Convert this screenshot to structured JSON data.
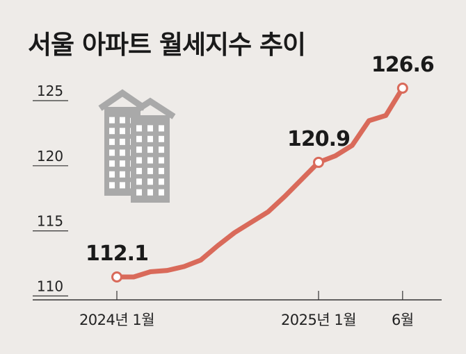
{
  "title": "서울 아파트 월세지수 추이",
  "chart_data": {
    "type": "line",
    "title": "서울 아파트 월세지수 추이",
    "xlabel": "",
    "ylabel": "",
    "ylim": [
      110,
      126.6
    ],
    "y_ticks": [
      "110",
      "115",
      "120",
      "125"
    ],
    "x_tick_labels": [
      "2024년 1월",
      "2025년 1월",
      "6월"
    ],
    "grid": false,
    "line_color": "#d96a5a",
    "series": [
      {
        "x": [
          "2024-01",
          "2024-02",
          "2024-03",
          "2024-04",
          "2024-05",
          "2024-06",
          "2024-07",
          "2024-08",
          "2024-09",
          "2024-10",
          "2024-11",
          "2024-12",
          "2025-01",
          "2025-02",
          "2025-03",
          "2025-04",
          "2025-05",
          "2025-06"
        ],
        "values": [
          112.1,
          112.1,
          112.5,
          112.6,
          112.9,
          113.4,
          114.5,
          115.5,
          116.3,
          117.1,
          118.3,
          119.6,
          120.9,
          121.4,
          122.2,
          124.1,
          124.5,
          126.6
        ]
      }
    ],
    "labeled_points": [
      {
        "x": "2024-01",
        "label": "112.1"
      },
      {
        "x": "2025-01",
        "label": "120.9"
      },
      {
        "x": "2025-06",
        "label": "126.6"
      }
    ]
  }
}
